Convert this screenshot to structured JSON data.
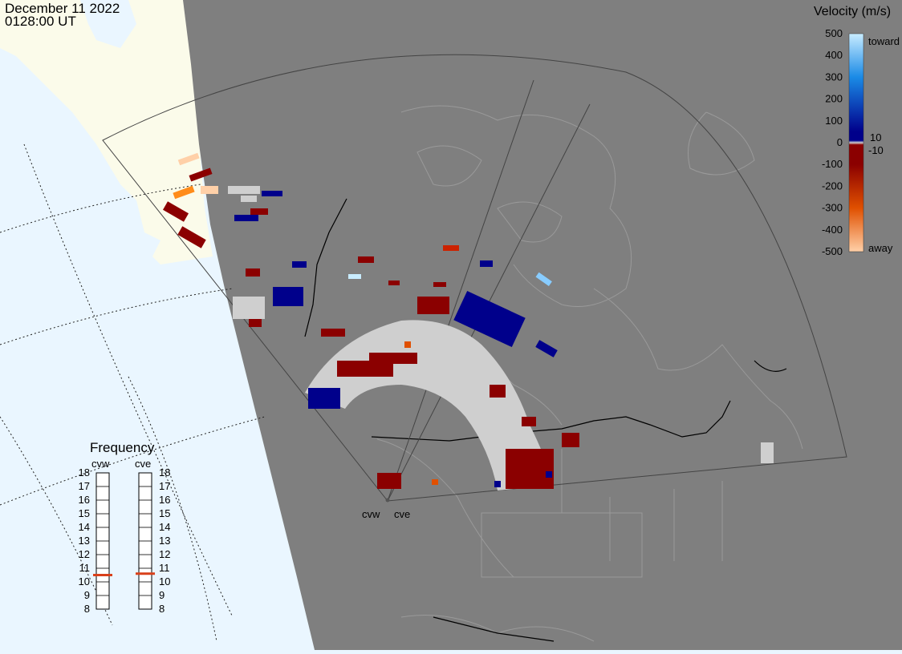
{
  "header": {
    "date": "December 11 2022",
    "time": "0128:00 UT"
  },
  "colorbar": {
    "title": "Velocity (m/s)",
    "ticks": [
      "500",
      "400",
      "300",
      "200",
      "100",
      "0",
      "-100",
      "-200",
      "-300",
      "-400",
      "-500"
    ],
    "labels": [
      "toward",
      "10",
      "-10",
      "away"
    ],
    "colors": {
      "toward_light": "#c8ecff",
      "toward_mid": "#1a8ae6",
      "toward_dark": "#00008b",
      "zero": "#d0d0d0",
      "away_dark": "#8b0000",
      "away_mid": "#e05000",
      "away_light": "#ffd0a8"
    }
  },
  "radars": {
    "west": "cvw",
    "east": "cve"
  },
  "frequency": {
    "title": "Frequency",
    "ticks": [
      "18",
      "17",
      "16",
      "15",
      "14",
      "13",
      "12",
      "11",
      "10",
      "9",
      "8"
    ],
    "cvw_value": 10.5,
    "cve_value": 10.6
  },
  "map_colors": {
    "ocean": "#eaf6ff",
    "night": "#7f7f7f",
    "land_day": "#fbfbea",
    "ground_scatter": "#cfcfcf"
  }
}
